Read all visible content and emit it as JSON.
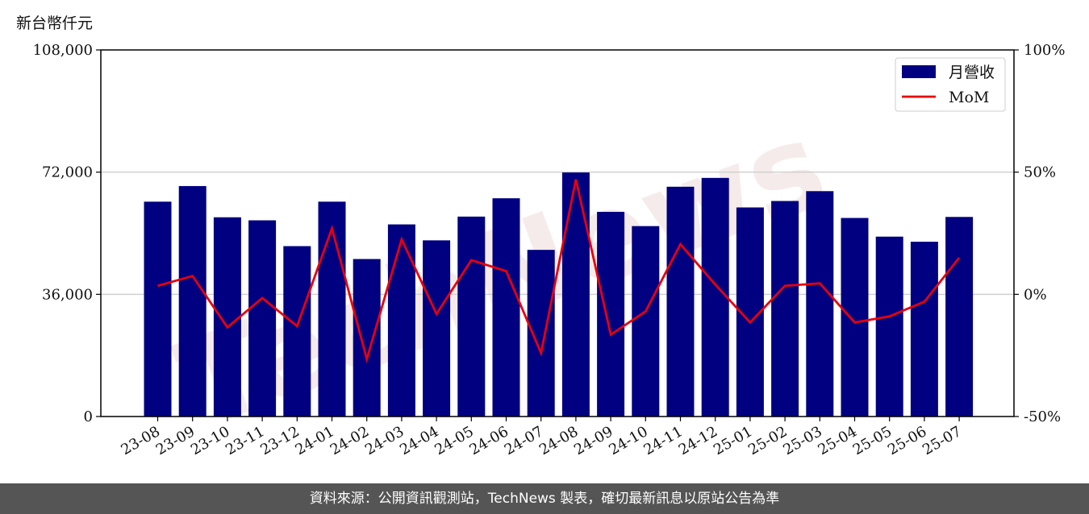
{
  "unit_label": "新台幣仟元",
  "footer_text": "資料來源：公開資訊觀測站，TechNews 製表，確切最新訊息以原站公告為準",
  "colors": {
    "bar": "#000080",
    "line": "#e8000b",
    "grid": "#d0d0d0"
  },
  "chart_data": {
    "type": "bar",
    "categories": [
      "23-08",
      "23-09",
      "23-10",
      "23-11",
      "23-12",
      "24-01",
      "24-02",
      "24-03",
      "24-04",
      "24-05",
      "24-06",
      "24-07",
      "24-08",
      "24-09",
      "24-10",
      "24-11",
      "24-12",
      "25-01",
      "25-02",
      "25-03",
      "25-04",
      "25-05",
      "25-06",
      "25-07"
    ],
    "series": [
      {
        "name": "月營收",
        "type": "bar",
        "axis": "left",
        "values": [
          63300,
          67900,
          58700,
          57800,
          50200,
          63300,
          46400,
          56600,
          51900,
          58900,
          64300,
          49100,
          71900,
          60300,
          56100,
          67700,
          70300,
          61600,
          63500,
          66400,
          58500,
          53000,
          51500,
          58800
        ]
      },
      {
        "name": "MoM",
        "type": "line",
        "axis": "right",
        "values": [
          3.5,
          7.5,
          -13.5,
          -1.5,
          -13,
          27,
          -26.5,
          22.5,
          -8,
          14,
          9.5,
          -24,
          47,
          -16.5,
          -7,
          20.5,
          4,
          -11.5,
          3.5,
          4.5,
          -11.5,
          -9,
          -3,
          15
        ]
      }
    ],
    "y_left": {
      "ylim": [
        0,
        108000
      ],
      "ticks": [
        0,
        36000,
        72000,
        108000
      ],
      "tick_labels": [
        "0",
        "36,000",
        "72,000",
        "108,000"
      ]
    },
    "y_right": {
      "ylim": [
        -50,
        100
      ],
      "ticks": [
        -50,
        0,
        50,
        100
      ],
      "tick_labels": [
        "-50%",
        "0%",
        "50%",
        "100%"
      ]
    },
    "grid": true,
    "legend": {
      "position": "top-right",
      "entries": [
        "月營收",
        "MoM"
      ]
    },
    "watermark": "TechNews"
  }
}
